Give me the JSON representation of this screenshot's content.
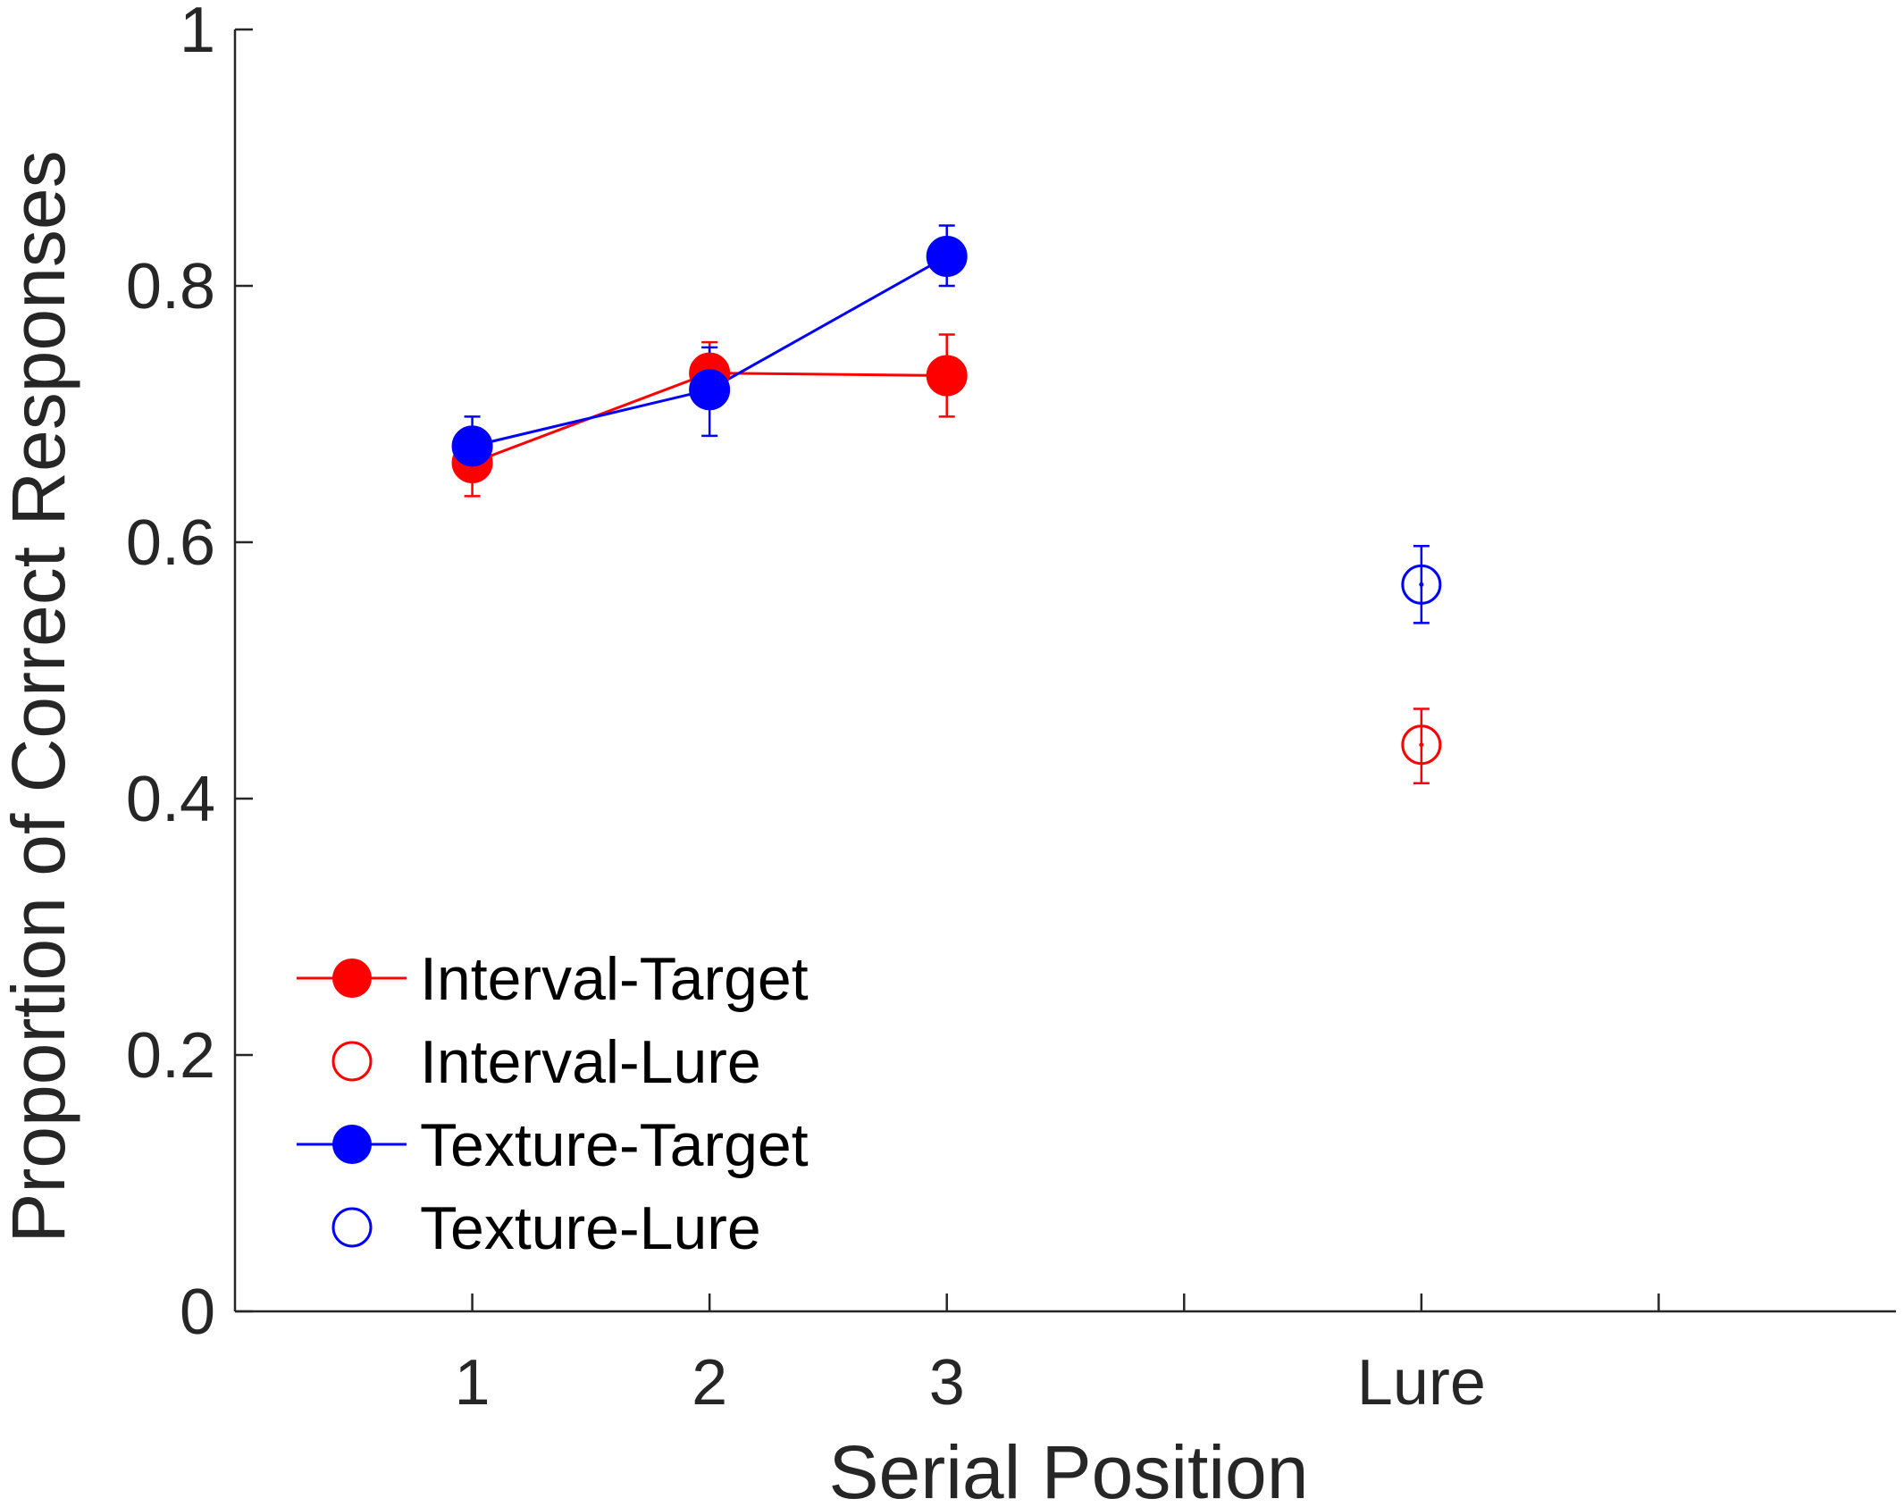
{
  "chart_data": {
    "type": "scatter",
    "xlabel": "Serial Position",
    "ylabel": "Proportion of Correct Responses",
    "ylim": [
      0,
      1
    ],
    "xlim": [
      0,
      7
    ],
    "yticks": [
      {
        "value": 0,
        "label": "0"
      },
      {
        "value": 0.2,
        "label": "0.2"
      },
      {
        "value": 0.4,
        "label": "0.4"
      },
      {
        "value": 0.6,
        "label": "0.6"
      },
      {
        "value": 0.8,
        "label": "0.8"
      },
      {
        "value": 1,
        "label": "1"
      }
    ],
    "xticks": [
      {
        "value": 1,
        "label": "1"
      },
      {
        "value": 2,
        "label": "2"
      },
      {
        "value": 3,
        "label": "3"
      },
      {
        "value": 4,
        "label": ""
      },
      {
        "value": 5,
        "label": "Lure"
      },
      {
        "value": 6,
        "label": ""
      }
    ],
    "grid": false,
    "legend_position": "bottom-left",
    "series": [
      {
        "name": "Interval-Target",
        "color": "#ff0000",
        "marker": "filled",
        "line": true,
        "points": [
          {
            "x": 1,
            "y": 0.662,
            "err_low": 0.636,
            "err_high": 0.684
          },
          {
            "x": 2,
            "y": 0.732,
            "err_low": 0.708,
            "err_high": 0.756
          },
          {
            "x": 3,
            "y": 0.73,
            "err_low": 0.698,
            "err_high": 0.762
          }
        ]
      },
      {
        "name": "Interval-Lure",
        "color": "#ff0000",
        "marker": "open",
        "line": false,
        "points": [
          {
            "x": 5,
            "y": 0.442,
            "err_low": 0.412,
            "err_high": 0.47
          }
        ]
      },
      {
        "name": "Texture-Target",
        "color": "#0000ff",
        "marker": "filled",
        "line": true,
        "points": [
          {
            "x": 1,
            "y": 0.675,
            "err_low": 0.654,
            "err_high": 0.698
          },
          {
            "x": 2,
            "y": 0.719,
            "err_low": 0.683,
            "err_high": 0.752
          },
          {
            "x": 3,
            "y": 0.823,
            "err_low": 0.8,
            "err_high": 0.847
          }
        ]
      },
      {
        "name": "Texture-Lure",
        "color": "#0000ff",
        "marker": "open",
        "line": false,
        "points": [
          {
            "x": 5,
            "y": 0.567,
            "err_low": 0.537,
            "err_high": 0.597
          }
        ]
      }
    ]
  }
}
